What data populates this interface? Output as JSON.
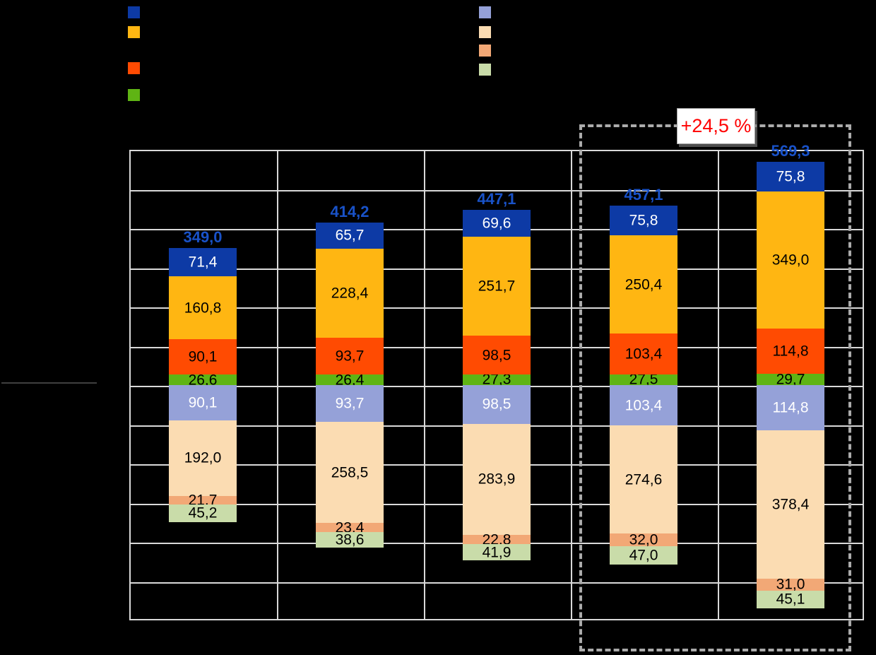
{
  "annotation": {
    "label": "+24,5 %",
    "color": "#FF0000"
  },
  "legend_left": {
    "items": [
      {
        "name": "dark-blue",
        "color": "#0D3AA5"
      },
      {
        "name": "amber",
        "color": "#FFB612"
      },
      {
        "name": "red-orange",
        "color": "#FF4B02"
      },
      {
        "name": "green",
        "color": "#5FB414"
      }
    ]
  },
  "legend_right": {
    "items": [
      {
        "name": "lavender",
        "color": "#95A1D8"
      },
      {
        "name": "peach",
        "color": "#FBDCB2"
      },
      {
        "name": "salmon",
        "color": "#F2A876"
      },
      {
        "name": "light-green",
        "color": "#C9DCA9"
      }
    ]
  },
  "chart_data": {
    "type": "bar",
    "subtype": "mirrored-stacked-bar",
    "decimal_separator": ",",
    "categories": [
      "",
      "",
      "",
      "",
      ""
    ],
    "series_above": [
      {
        "name": "dark-blue",
        "color": "#0D3AA5",
        "text_color": "#FFFFFF",
        "values": [
          71.4,
          65.7,
          69.6,
          75.8,
          75.8
        ]
      },
      {
        "name": "amber",
        "color": "#FFB612",
        "text_color": "#000000",
        "values": [
          160.8,
          228.4,
          251.7,
          250.4,
          349.0
        ]
      },
      {
        "name": "red-orange",
        "color": "#FF4B02",
        "text_color": "#000000",
        "values": [
          90.1,
          93.7,
          98.5,
          103.4,
          114.8
        ]
      },
      {
        "name": "green",
        "color": "#5FB414",
        "text_color": "#000000",
        "values": [
          26.6,
          26.4,
          27.3,
          27.5,
          29.7
        ]
      }
    ],
    "series_below": [
      {
        "name": "lavender",
        "color": "#95A1D8",
        "text_color": "#FFFFFF",
        "values": [
          90.1,
          93.7,
          98.5,
          103.4,
          114.8
        ]
      },
      {
        "name": "peach",
        "color": "#FBDCB2",
        "text_color": "#000000",
        "values": [
          192.0,
          258.5,
          283.9,
          274.6,
          378.4
        ]
      },
      {
        "name": "salmon",
        "color": "#F2A876",
        "text_color": "#000000",
        "values": [
          21.7,
          23.4,
          22.8,
          32.0,
          31.0
        ]
      },
      {
        "name": "light-green",
        "color": "#C9DCA9",
        "text_color": "#000000",
        "values": [
          45.2,
          38.6,
          41.9,
          47.0,
          45.1
        ]
      }
    ],
    "totals": [
      349.0,
      414.2,
      447.1,
      457.1,
      569.3
    ],
    "totals_labels": [
      "349,0",
      "414,2",
      "447,1",
      "457,1",
      "569,3"
    ],
    "total_label_color": "#1952C8",
    "ylim": [
      -600,
      600
    ],
    "gridline_step_value": 100,
    "grid": true,
    "gridline_color": "#D9D9D9",
    "highlight": {
      "group_indexes": [
        3,
        4
      ],
      "label": "+24,5 %"
    },
    "legend_position": "top"
  }
}
